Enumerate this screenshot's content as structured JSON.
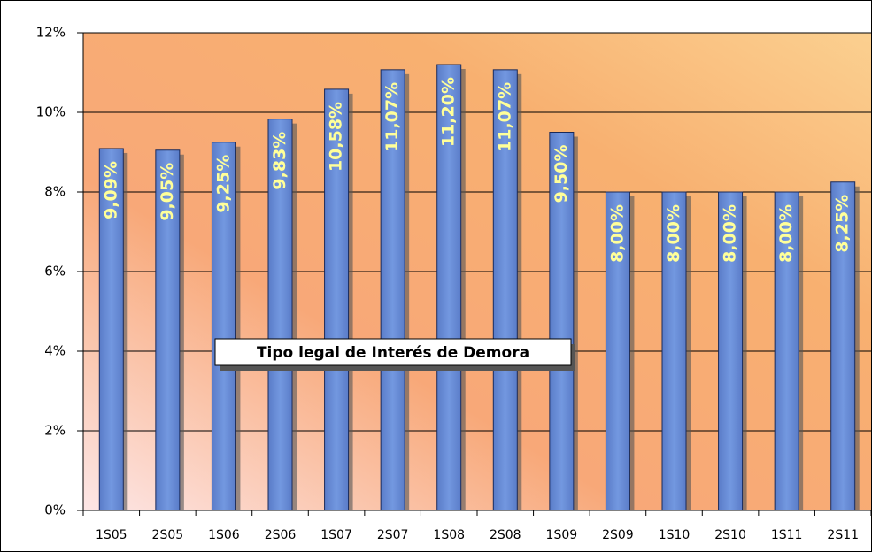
{
  "chart_data": {
    "type": "bar",
    "annotation": "Tipo legal de Interés de Demora",
    "categories": [
      "1S05",
      "2S05",
      "1S06",
      "2S06",
      "1S07",
      "2S07",
      "1S08",
      "2S08",
      "1S09",
      "2S09",
      "1S10",
      "2S10",
      "1S11",
      "2S11"
    ],
    "values": [
      9.09,
      9.05,
      9.25,
      9.83,
      10.58,
      11.07,
      11.2,
      11.07,
      9.5,
      8.0,
      8.0,
      8.0,
      8.0,
      8.25
    ],
    "value_labels": [
      "9,09%",
      "9,05%",
      "9,25%",
      "9,83%",
      "10,58%",
      "11,07%",
      "11,20%",
      "11,07%",
      "9,50%",
      "8,00%",
      "8,00%",
      "8,00%",
      "8,00%",
      "8,25%"
    ],
    "color": "#6b8fd6",
    "ylim": [
      0,
      12
    ],
    "yticks": [
      {
        "value": 0,
        "label": "0%"
      },
      {
        "value": 2,
        "label": "2%"
      },
      {
        "value": 4,
        "label": "4%"
      },
      {
        "value": 6,
        "label": "6%"
      },
      {
        "value": 8,
        "label": "8%"
      },
      {
        "value": 10,
        "label": "10%"
      },
      {
        "value": 12,
        "label": "12%"
      }
    ],
    "grid": true
  }
}
